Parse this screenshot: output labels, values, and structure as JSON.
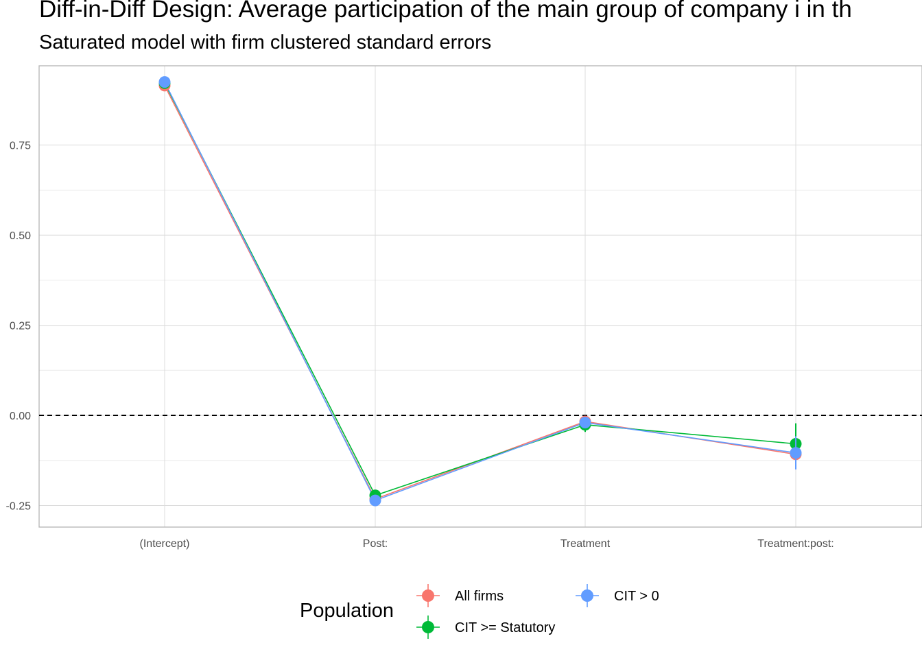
{
  "chart_data": {
    "type": "line",
    "title": "Diff-in-Diff Design: Average participation of the main group of company i in th",
    "subtitle": "Saturated model with firm clustered standard errors",
    "xlabel": "",
    "ylabel": "",
    "categories": [
      "(Intercept)",
      "Post:",
      "Treatment",
      "Treatment:post:"
    ],
    "ylim": [
      -0.31,
      0.97
    ],
    "yticks": [
      -0.25,
      0.0,
      0.25,
      0.5,
      0.75
    ],
    "ytick_labels": [
      "-0.25",
      "0.00",
      "0.25",
      "0.50",
      "0.75"
    ],
    "grid": true,
    "reference_line": {
      "y": 0.0,
      "style": "dashed"
    },
    "legend": {
      "title": "Population",
      "placement": "bottom"
    },
    "series": [
      {
        "name": "All firms",
        "color": "#F8766D",
        "values": [
          0.915,
          -0.232,
          -0.017,
          -0.108
        ],
        "err_low": [
          0.905,
          -0.24,
          -0.027,
          -0.133
        ],
        "err_high": [
          0.925,
          -0.224,
          -0.007,
          -0.083
        ]
      },
      {
        "name": "CIT >= Statutory",
        "color": "#00BA38",
        "values": [
          0.922,
          -0.222,
          -0.026,
          -0.079
        ],
        "err_low": [
          0.912,
          -0.232,
          -0.046,
          -0.133
        ],
        "err_high": [
          0.932,
          -0.212,
          -0.006,
          -0.022
        ]
      },
      {
        "name": "CIT > 0",
        "color": "#619CFF",
        "values": [
          0.925,
          -0.236,
          -0.02,
          -0.104
        ],
        "err_low": [
          0.915,
          -0.244,
          -0.03,
          -0.15
        ],
        "err_high": [
          0.935,
          -0.228,
          -0.01,
          -0.058
        ]
      }
    ]
  }
}
